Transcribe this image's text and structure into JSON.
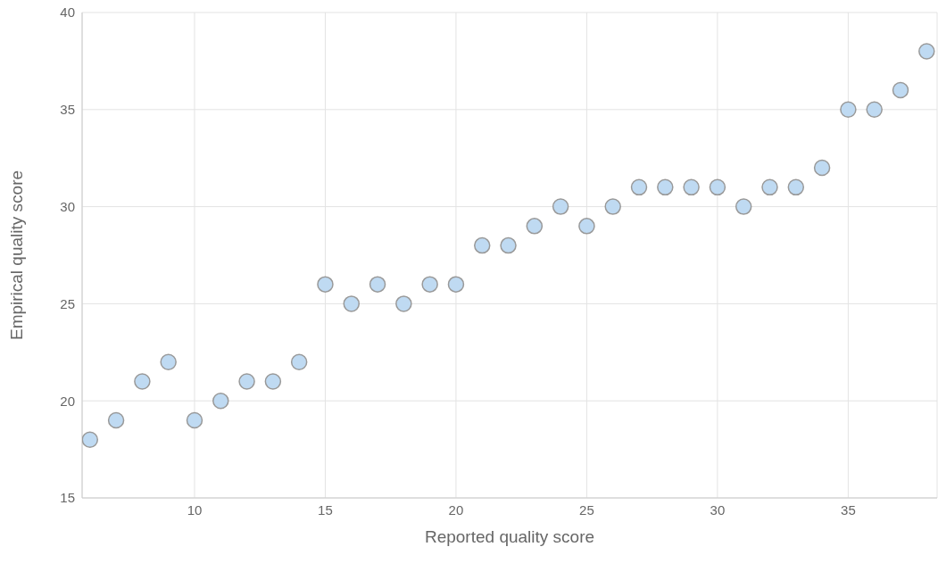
{
  "chart_data": {
    "type": "scatter",
    "xlabel": "Reported quality score",
    "ylabel": "Empirical quality score",
    "x": [
      6,
      7,
      8,
      9,
      10,
      11,
      12,
      13,
      14,
      15,
      16,
      17,
      18,
      19,
      20,
      21,
      22,
      23,
      24,
      25,
      26,
      27,
      28,
      29,
      30,
      31,
      32,
      33,
      34,
      35,
      36,
      37,
      38
    ],
    "series": [
      {
        "color": "#bfdaf2",
        "values": [
          18,
          19,
          21,
          22,
          19,
          20,
          21,
          21,
          22,
          26,
          25,
          26,
          25,
          26,
          26,
          28,
          28,
          29,
          30,
          29,
          30,
          31,
          31,
          31,
          31,
          30,
          31,
          31,
          32,
          35,
          35,
          36,
          38
        ]
      }
    ],
    "xlim": [
      5.7,
      38.4
    ],
    "xticks": [
      10,
      15,
      20,
      25,
      30,
      35
    ],
    "ylim": [
      15,
      40
    ],
    "yticks": [
      15,
      20,
      25,
      30,
      35,
      40
    ],
    "grid": true,
    "marker": "circle",
    "legend": false
  }
}
